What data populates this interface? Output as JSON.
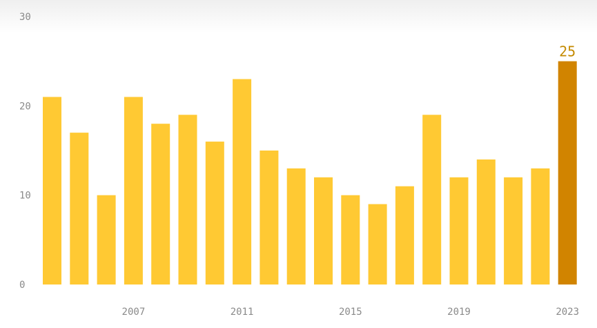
{
  "chart_data": {
    "type": "bar",
    "title": "",
    "xlabel": "",
    "ylabel": "",
    "categories": [
      "2004",
      "2005",
      "2006",
      "2007",
      "2008",
      "2009",
      "2010",
      "2011",
      "2012",
      "2013",
      "2014",
      "2015",
      "2016",
      "2017",
      "2018",
      "2019",
      "2020",
      "2021",
      "2022",
      "2023"
    ],
    "values": [
      21,
      17,
      10,
      21,
      18,
      19,
      16,
      23,
      15,
      13,
      12,
      10,
      9,
      11,
      19,
      12,
      14,
      12,
      13,
      25
    ],
    "ylim": [
      0,
      30
    ],
    "yticks": [
      "0",
      "10",
      "20",
      "30"
    ],
    "xticks": [
      "2007",
      "2011",
      "2015",
      "2019",
      "2023"
    ],
    "highlight": {
      "category": "2023",
      "label": "25"
    },
    "grid": false,
    "colors": {
      "bar": "#FFC933",
      "highlight": "#D18400",
      "highlight_label": "#C48A00",
      "tick": "#8a8a8a"
    }
  }
}
